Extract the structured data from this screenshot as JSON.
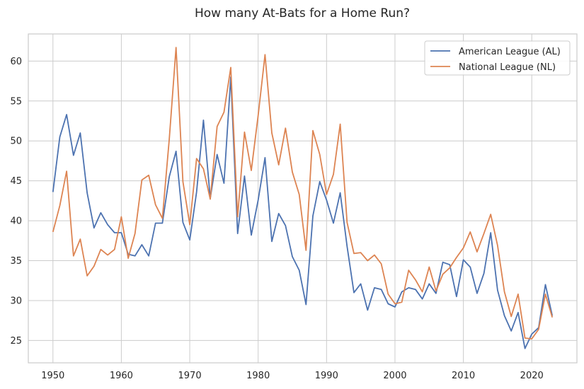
{
  "chart_data": {
    "type": "line",
    "title": "How many At-Bats for a Home Run?",
    "xlabel": "",
    "ylabel": "",
    "xlim": [
      1946.35,
      1926.35
    ],
    "x_ticks": [
      1950,
      1960,
      1970,
      1980,
      1990,
      2000,
      2010,
      2020
    ],
    "ylim": [
      22.2,
      63.4
    ],
    "y_ticks": [
      25,
      30,
      35,
      40,
      45,
      50,
      55,
      60
    ],
    "grid": true,
    "legend_position": "top-right",
    "x": [
      1950,
      1951,
      1952,
      1953,
      1954,
      1955,
      1956,
      1957,
      1958,
      1959,
      1960,
      1961,
      1962,
      1963,
      1964,
      1965,
      1966,
      1967,
      1968,
      1969,
      1970,
      1971,
      1972,
      1973,
      1974,
      1975,
      1976,
      1977,
      1978,
      1979,
      1980,
      1981,
      1982,
      1983,
      1984,
      1985,
      1986,
      1987,
      1988,
      1989,
      1990,
      1991,
      1992,
      1993,
      1994,
      1995,
      1996,
      1997,
      1998,
      1999,
      2000,
      2001,
      2002,
      2003,
      2004,
      2005,
      2006,
      2007,
      2008,
      2009,
      2010,
      2011,
      2012,
      2013,
      2014,
      2015,
      2016,
      2017,
      2018,
      2019,
      2020,
      2021,
      2022,
      2023
    ],
    "series": [
      {
        "name": "American League (AL)",
        "color": "#4c72b0",
        "values": [
          43.6,
          50.5,
          53.3,
          48.2,
          51.0,
          43.5,
          39.1,
          41.0,
          39.5,
          38.5,
          38.5,
          35.8,
          35.6,
          37.0,
          35.6,
          39.7,
          39.7,
          45.5,
          48.7,
          39.8,
          37.6,
          43.6,
          52.6,
          42.8,
          48.3,
          44.7,
          58.0,
          38.4,
          45.6,
          38.2,
          42.6,
          47.9,
          37.4,
          40.9,
          39.4,
          35.5,
          33.8,
          29.5,
          40.6,
          44.9,
          42.6,
          39.7,
          43.5,
          36.8,
          31.0,
          32.1,
          28.8,
          31.6,
          31.4,
          29.6,
          29.2,
          31.1,
          31.6,
          31.4,
          30.2,
          32.1,
          30.9,
          34.8,
          34.5,
          30.5,
          35.1,
          34.2,
          30.9,
          33.4,
          38.5,
          31.3,
          28.1,
          26.2,
          28.5,
          24.0,
          25.8,
          26.6,
          32.0,
          28.1
        ]
      },
      {
        "name": "National League (NL)",
        "color": "#dd8452",
        "values": [
          38.6,
          41.9,
          46.2,
          35.6,
          37.7,
          33.1,
          34.3,
          36.4,
          35.7,
          36.4,
          40.5,
          35.3,
          38.4,
          45.1,
          45.7,
          42.0,
          40.3,
          50.2,
          61.7,
          44.9,
          39.5,
          47.8,
          46.5,
          42.7,
          51.8,
          53.6,
          59.2,
          40.5,
          51.1,
          46.3,
          53.2,
          60.8,
          51.0,
          47.0,
          51.6,
          46.1,
          43.3,
          36.3,
          51.3,
          48.3,
          43.3,
          45.8,
          52.1,
          39.8,
          35.9,
          36.0,
          35.0,
          35.7,
          34.6,
          30.8,
          29.6,
          29.8,
          33.8,
          32.6,
          31.1,
          34.2,
          31.2,
          33.3,
          34.1,
          35.4,
          36.6,
          38.6,
          36.1,
          38.4,
          40.8,
          36.9,
          31.1,
          28.0,
          30.8,
          25.3,
          25.2,
          26.4,
          30.8,
          27.9
        ]
      }
    ]
  }
}
